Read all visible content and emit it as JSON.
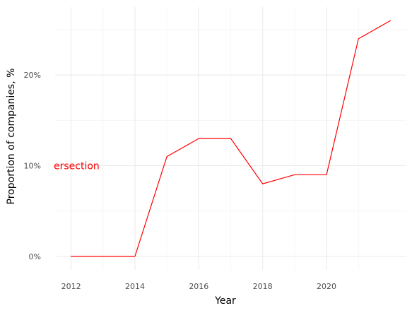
{
  "chart_data": {
    "type": "line",
    "title": "",
    "xlabel": "Year",
    "ylabel": "Proportion of companies, %",
    "x": [
      2012,
      2013,
      2014,
      2015,
      2016,
      2017,
      2018,
      2019,
      2020,
      2021,
      2022
    ],
    "series": [
      {
        "color": "#ff0000",
        "values": [
          0,
          0,
          0,
          11,
          13,
          13,
          8,
          9,
          9,
          24,
          26
        ]
      }
    ],
    "xlim": [
      2011.5,
      2022.5
    ],
    "ylim": [
      -1.5,
      27.5
    ],
    "x_ticks": [
      2012,
      2014,
      2016,
      2018,
      2020
    ],
    "x_tick_labels": [
      "2012",
      "2014",
      "2016",
      "2018",
      "2020"
    ],
    "y_ticks": [
      0,
      10,
      20
    ],
    "y_tick_labels": [
      "0%",
      "10%",
      "20%"
    ],
    "grid": true,
    "annotation": {
      "text": "ersection",
      "x_value": 2011.5,
      "y_value": 10
    },
    "colors": {
      "line": "#ff0000",
      "grid_major": "#ebebeb",
      "grid_minor": "#f6f6f6",
      "background": "#ffffff"
    }
  }
}
